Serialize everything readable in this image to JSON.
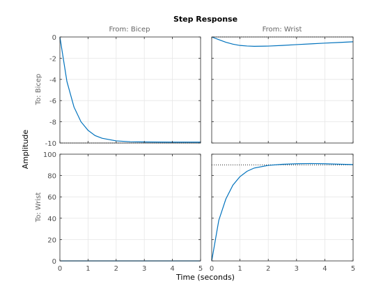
{
  "chart_data": {
    "type": "line",
    "title": "Step Response",
    "xlabel": "Time (seconds)",
    "ylabel": "Amplitude",
    "grid": true,
    "column_labels": [
      "From: Bicep",
      "From: Wrist"
    ],
    "row_labels": [
      "To: Bicep",
      "To: Wrist"
    ],
    "x_range": [
      0,
      5
    ],
    "x_ticks": [
      "0",
      "1",
      "2",
      "3",
      "4",
      "5"
    ],
    "rows": [
      {
        "ylim": [
          -10,
          0
        ],
        "y_ticks": [
          "-10",
          "-8",
          "-6",
          "-4",
          "-2",
          "0"
        ]
      },
      {
        "ylim": [
          0,
          100
        ],
        "y_ticks": [
          "0",
          "20",
          "40",
          "60",
          "80",
          "100"
        ]
      }
    ],
    "colors": {
      "line": "#0072bd",
      "reference": "#000000",
      "grid": "#e6e6e6"
    },
    "panels": [
      {
        "row": 0,
        "col": 0,
        "x": [
          0,
          0.25,
          0.5,
          0.75,
          1,
          1.25,
          1.5,
          2,
          2.5,
          3,
          4,
          5
        ],
        "y": [
          0,
          -4.2,
          -6.6,
          -8.0,
          -8.8,
          -9.3,
          -9.55,
          -9.8,
          -9.88,
          -9.9,
          -9.92,
          -9.92
        ],
        "final_value": -10
      },
      {
        "row": 0,
        "col": 1,
        "x": [
          0,
          0.25,
          0.5,
          0.75,
          1,
          1.25,
          1.5,
          2,
          2.5,
          3,
          3.5,
          4,
          4.5,
          5
        ],
        "y": [
          0,
          -0.25,
          -0.5,
          -0.68,
          -0.8,
          -0.85,
          -0.88,
          -0.86,
          -0.8,
          -0.72,
          -0.65,
          -0.58,
          -0.52,
          -0.45
        ],
        "final_value": 0
      },
      {
        "row": 1,
        "col": 0,
        "x": [
          0,
          1,
          2,
          3,
          4,
          5
        ],
        "y": [
          0,
          0,
          0,
          0,
          0,
          0
        ],
        "final_value": 0
      },
      {
        "row": 1,
        "col": 1,
        "x": [
          0,
          0.25,
          0.5,
          0.75,
          1,
          1.25,
          1.5,
          2,
          2.5,
          3,
          3.5,
          4,
          4.5,
          5
        ],
        "y": [
          0,
          38,
          58,
          71,
          79,
          84,
          87,
          89.5,
          90.5,
          91,
          91.2,
          91,
          90.6,
          90.3
        ],
        "final_value": 90
      }
    ]
  }
}
